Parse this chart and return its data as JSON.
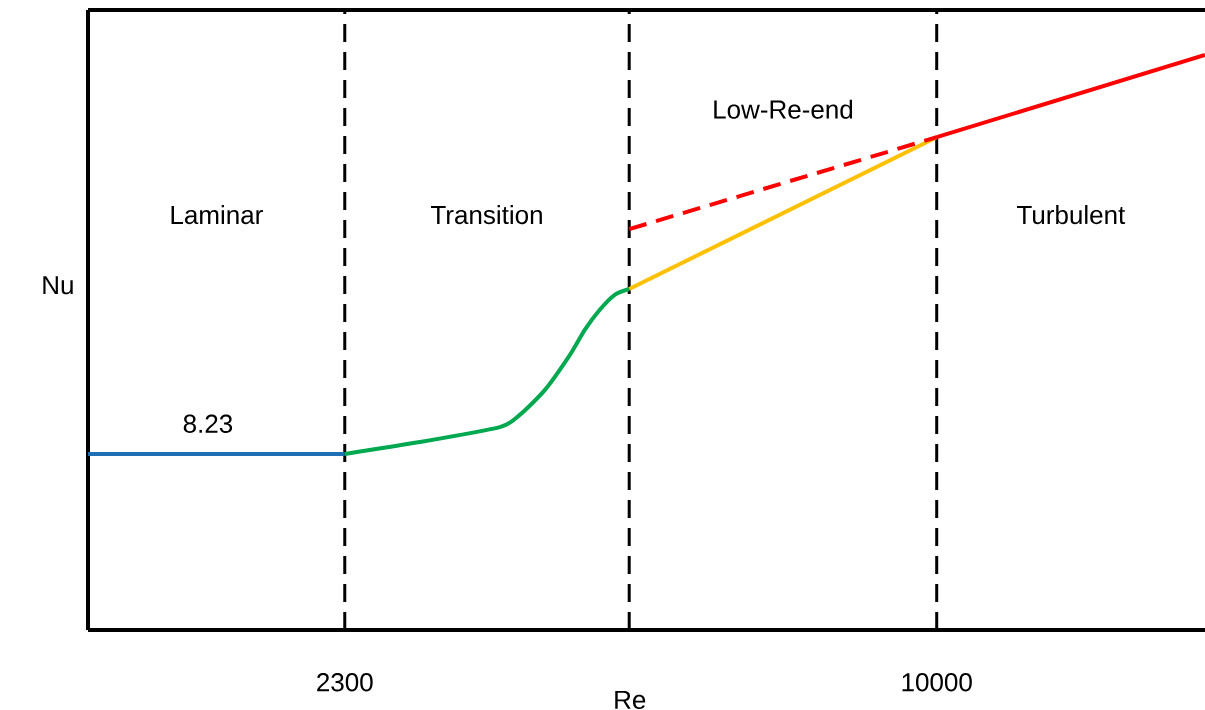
{
  "chart_data": {
    "type": "line",
    "xlabel": "Re",
    "ylabel": "Nu",
    "xlim": [
      -1040,
      13490
    ],
    "xticks": [
      2300,
      10000
    ],
    "ylim": [
      0,
      29.0
    ],
    "tick_labels": "x",
    "series": [
      {
        "color": "#1f6fb5",
        "x": [
          -1040,
          520,
          2300
        ],
        "values": [
          8.23,
          8.23,
          8.23
        ],
        "value_labels": [
          null,
          "8.23",
          null
        ]
      },
      {
        "color": "#00a84f",
        "x": [
          2300,
          3276,
          4316,
          4576,
          4901,
          5227,
          5422,
          5617,
          5812,
          6000
        ],
        "values": [
          8.23,
          8.79,
          9.49,
          10.06,
          11.22,
          12.86,
          14.04,
          14.98,
          15.68,
          15.95
        ]
      },
      {
        "color": "#ffc000",
        "x": [
          6000,
          10000
        ],
        "values": [
          15.95,
          23.05
        ]
      },
      {
        "color": "#ff0000",
        "x": [
          6000,
          10000
        ],
        "values": [
          18.75,
          23.05
        ],
        "line_style": "dashed"
      },
      {
        "color": "#ff0000",
        "x": [
          10000,
          13490
        ],
        "values": [
          23.05,
          26.9
        ]
      }
    ],
    "ref_lines": [
      {
        "axis": "x",
        "value": 2300,
        "color": "#000000",
        "line_style": "dashed"
      },
      {
        "axis": "x",
        "value": 6000,
        "color": "#000000",
        "line_style": "dashed"
      },
      {
        "axis": "x",
        "value": 10000,
        "color": "#000000",
        "line_style": "dashed"
      }
    ],
    "annotations": [
      "Laminar",
      "Transition",
      "Low-Re-end",
      "Turbulent"
    ]
  }
}
